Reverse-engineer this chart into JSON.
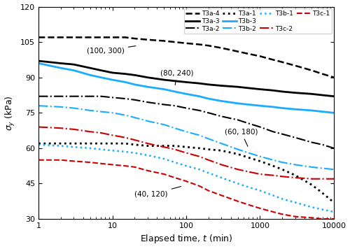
{
  "xlabel": "Elapsed time, t (min)",
  "ylabel": "σ_y (kPa)",
  "xlim": [
    1,
    10000
  ],
  "ylim": [
    30,
    120
  ],
  "yticks": [
    30,
    45,
    60,
    75,
    90,
    105,
    120
  ],
  "series": [
    {
      "label": "T3a-4",
      "color": "#000000",
      "linestyle": "--",
      "linewidth": 1.8,
      "x": [
        1,
        2,
        3,
        5,
        7,
        10,
        15,
        20,
        30,
        50,
        70,
        100,
        150,
        200,
        300,
        500,
        700,
        1000,
        1500,
        2000,
        3000,
        5000,
        7000,
        10000
      ],
      "y": [
        107,
        107,
        107,
        107,
        107,
        107,
        107,
        106.5,
        106,
        105.5,
        105,
        104.5,
        104,
        103.5,
        102.5,
        101,
        100,
        99,
        97.5,
        96.5,
        95,
        93,
        91.5,
        90
      ]
    },
    {
      "label": "T3a-3",
      "color": "#000000",
      "linestyle": "-",
      "linewidth": 2.0,
      "x": [
        1,
        2,
        3,
        5,
        7,
        10,
        15,
        20,
        30,
        50,
        70,
        100,
        150,
        200,
        300,
        500,
        700,
        1000,
        1500,
        2000,
        3000,
        5000,
        7000,
        10000
      ],
      "y": [
        97,
        96,
        95.5,
        94,
        93,
        92,
        91.5,
        91,
        90,
        89,
        88.5,
        88,
        87.5,
        87,
        86.5,
        86,
        85.5,
        85,
        84.5,
        84,
        83.5,
        83,
        82.5,
        82
      ]
    },
    {
      "label": "T3a-2",
      "color": "#000000",
      "linestyle": "-.",
      "linewidth": 1.5,
      "x": [
        1,
        2,
        3,
        5,
        7,
        10,
        15,
        20,
        30,
        50,
        70,
        100,
        150,
        200,
        300,
        500,
        700,
        1000,
        1500,
        2000,
        3000,
        5000,
        7000,
        10000
      ],
      "y": [
        82,
        82,
        82,
        82,
        82,
        81.5,
        81,
        80.5,
        79.5,
        78.5,
        78,
        77,
        76,
        75,
        73.5,
        72,
        70.5,
        69,
        67,
        66,
        64.5,
        62.5,
        61.5,
        60
      ]
    },
    {
      "label": "T3a-1",
      "color": "#000000",
      "linestyle": ":",
      "linewidth": 2.0,
      "x": [
        1,
        2,
        3,
        5,
        7,
        10,
        15,
        20,
        30,
        50,
        70,
        100,
        150,
        200,
        300,
        500,
        700,
        1000,
        1500,
        2000,
        3000,
        5000,
        7000,
        10000
      ],
      "y": [
        62,
        62,
        62,
        62,
        62,
        62,
        62,
        61.5,
        61,
        61,
        61,
        60.5,
        60,
        59.5,
        59,
        57.5,
        56,
        54.5,
        52.5,
        51,
        48.5,
        44.5,
        41,
        37
      ]
    },
    {
      "label": "T3b-3",
      "color": "#1AACFF",
      "linestyle": "-",
      "linewidth": 2.0,
      "x": [
        1,
        2,
        3,
        5,
        7,
        10,
        15,
        20,
        30,
        50,
        70,
        100,
        150,
        200,
        300,
        500,
        700,
        1000,
        1500,
        2000,
        3000,
        5000,
        7000,
        10000
      ],
      "y": [
        96,
        94,
        93,
        91,
        90,
        89,
        88,
        87,
        86,
        85,
        84,
        83,
        82,
        81,
        80,
        79,
        78.5,
        78,
        77.5,
        77,
        76.5,
        76,
        75.5,
        75
      ]
    },
    {
      "label": "T3b-2",
      "color": "#1AACFF",
      "linestyle": "-.",
      "linewidth": 1.5,
      "x": [
        1,
        2,
        3,
        5,
        7,
        10,
        15,
        20,
        30,
        50,
        70,
        100,
        150,
        200,
        300,
        500,
        700,
        1000,
        1500,
        2000,
        3000,
        5000,
        7000,
        10000
      ],
      "y": [
        78,
        77.5,
        77,
        76,
        75.5,
        75,
        74,
        73,
        71.5,
        70,
        68.5,
        67,
        65.5,
        64,
        62,
        59.5,
        58,
        56.5,
        55,
        54,
        53,
        52,
        51.5,
        51
      ]
    },
    {
      "label": "T3b-1",
      "color": "#1AACFF",
      "linestyle": ":",
      "linewidth": 1.8,
      "x": [
        1,
        2,
        3,
        5,
        7,
        10,
        15,
        20,
        30,
        50,
        70,
        100,
        150,
        200,
        300,
        500,
        700,
        1000,
        1500,
        2000,
        3000,
        5000,
        7000,
        10000
      ],
      "y": [
        61.5,
        61,
        60.5,
        60,
        59.5,
        59,
        58.5,
        58,
        57,
        55.5,
        54,
        52.5,
        51,
        49.5,
        47.5,
        45,
        43.5,
        42,
        40,
        38.5,
        37,
        35,
        34,
        33
      ]
    },
    {
      "label": "T3c-2",
      "color": "#CC0000",
      "linestyle": "-.",
      "linewidth": 1.5,
      "x": [
        1,
        2,
        3,
        5,
        7,
        10,
        15,
        20,
        30,
        50,
        70,
        100,
        150,
        200,
        300,
        500,
        700,
        1000,
        1500,
        2000,
        3000,
        5000,
        7000,
        10000
      ],
      "y": [
        69,
        68.5,
        68,
        67,
        66.5,
        65.5,
        64.5,
        63.5,
        62,
        60.5,
        59.5,
        58,
        56.5,
        55,
        53,
        51,
        50,
        49,
        48.5,
        48,
        47.5,
        47,
        47,
        47
      ]
    },
    {
      "label": "T3c-1",
      "color": "#CC0000",
      "linestyle": "--",
      "linewidth": 1.5,
      "x": [
        1,
        2,
        3,
        5,
        7,
        10,
        15,
        20,
        30,
        50,
        70,
        100,
        150,
        200,
        300,
        500,
        700,
        1000,
        1500,
        2000,
        3000,
        5000,
        7000,
        10000
      ],
      "y": [
        55,
        55,
        54.5,
        54,
        53.5,
        53,
        52.5,
        52,
        50.5,
        49,
        47.5,
        46,
        44,
        42,
        40,
        37.5,
        36,
        34.5,
        33,
        32,
        31,
        30.5,
        30,
        30
      ]
    }
  ],
  "legend_order": [
    0,
    1,
    2,
    3,
    4,
    5,
    6,
    7,
    8
  ],
  "annotations": [
    {
      "text": "(100, 300)",
      "xy_x": 22,
      "xy_y": 103.5,
      "txt_x": 4.5,
      "txt_y": 100.5
    },
    {
      "text": "(80, 240)",
      "xy_x": 70,
      "xy_y": 86,
      "txt_x": 45,
      "txt_y": 91
    },
    {
      "text": "(60, 180)",
      "xy_x": 700,
      "xy_y": 60,
      "txt_x": 330,
      "txt_y": 66
    },
    {
      "text": "(40, 120)",
      "xy_x": 90,
      "xy_y": 44,
      "txt_x": 20,
      "txt_y": 39.5
    }
  ]
}
